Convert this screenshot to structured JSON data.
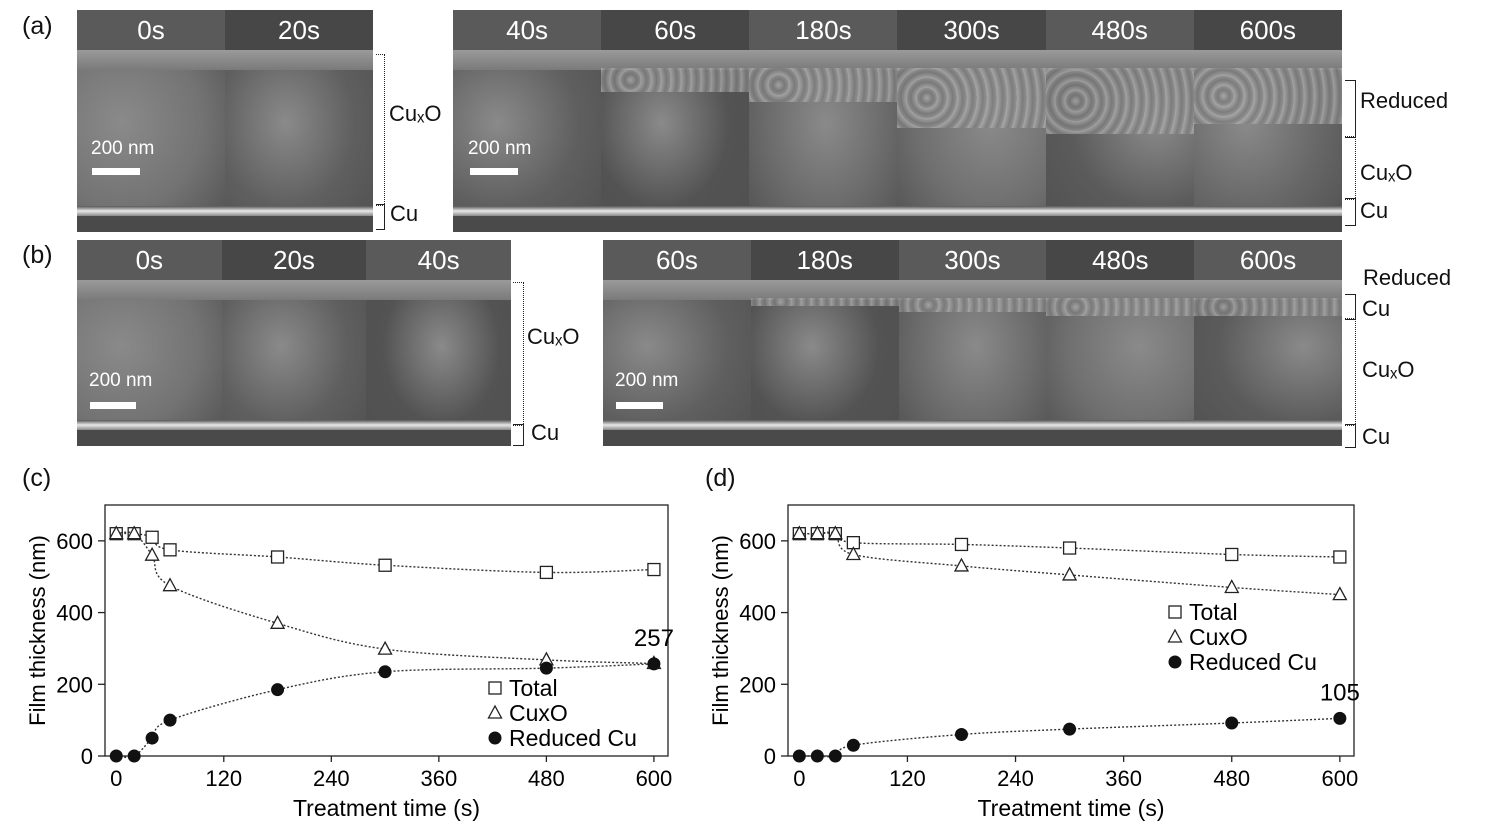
{
  "figure": {
    "panel_labels": {
      "a": "(a)",
      "b": "(b)",
      "c": "(c)",
      "d": "(d)"
    },
    "panel_a": {
      "left_times": [
        "0s",
        "20s"
      ],
      "right_times": [
        "40s",
        "60s",
        "180s",
        "300s",
        "480s",
        "600s"
      ],
      "scale_label": "200 nm",
      "left_layers": {
        "oxide": "CuₓO",
        "metal": "Cu"
      },
      "right_layers": {
        "reduced": "Reduced",
        "oxide": "CuₓO",
        "metal": "Cu"
      }
    },
    "panel_b": {
      "left_times": [
        "0s",
        "20s",
        "40s"
      ],
      "right_times": [
        "60s",
        "180s",
        "300s",
        "480s",
        "600s"
      ],
      "scale_label": "200 nm",
      "left_layers": {
        "oxide": "CuₓO",
        "metal": "Cu"
      },
      "right_layers": {
        "reduced": "Reduced",
        "reduced_cu": "Cu",
        "oxide": "CuₓO",
        "metal": "Cu"
      }
    }
  },
  "chart_data": [
    {
      "type": "scatter",
      "panel": "(c)",
      "xlabel": "Treatment time (s)",
      "ylabel": "Film thickness (nm)",
      "xlim": [
        0,
        600
      ],
      "ylim": [
        0,
        700
      ],
      "xticks": [
        0,
        120,
        240,
        360,
        480,
        600
      ],
      "yticks": [
        0,
        200,
        400,
        600
      ],
      "legend_position": "bottom-right",
      "annotation": "257",
      "series": [
        {
          "name": "Total",
          "marker": "square",
          "x": [
            0,
            20,
            40,
            60,
            180,
            300,
            480,
            600
          ],
          "y": [
            620,
            620,
            610,
            575,
            555,
            532,
            512,
            520
          ]
        },
        {
          "name": "CuxO",
          "marker": "triangle",
          "x": [
            0,
            20,
            40,
            60,
            180,
            300,
            480,
            600
          ],
          "y": [
            620,
            620,
            560,
            475,
            370,
            298,
            268,
            258
          ]
        },
        {
          "name": "Reduced Cu",
          "marker": "circle",
          "x": [
            0,
            20,
            40,
            60,
            180,
            300,
            480,
            600
          ],
          "y": [
            0,
            0,
            50,
            100,
            185,
            235,
            245,
            257
          ]
        }
      ]
    },
    {
      "type": "scatter",
      "panel": "(d)",
      "xlabel": "Treatment time (s)",
      "ylabel": "Film thickness (nm)",
      "xlim": [
        0,
        600
      ],
      "ylim": [
        0,
        700
      ],
      "xticks": [
        0,
        120,
        240,
        360,
        480,
        600
      ],
      "yticks": [
        0,
        200,
        400,
        600
      ],
      "legend_position": "center-right",
      "annotation": "105",
      "series": [
        {
          "name": "Total",
          "marker": "square",
          "x": [
            0,
            20,
            40,
            60,
            180,
            300,
            480,
            600
          ],
          "y": [
            620,
            620,
            620,
            595,
            590,
            580,
            562,
            555
          ]
        },
        {
          "name": "CuxO",
          "marker": "triangle",
          "x": [
            0,
            20,
            40,
            60,
            180,
            300,
            480,
            600
          ],
          "y": [
            620,
            620,
            620,
            562,
            530,
            505,
            470,
            450
          ]
        },
        {
          "name": "Reduced Cu",
          "marker": "circle",
          "x": [
            0,
            20,
            40,
            60,
            180,
            300,
            480,
            600
          ],
          "y": [
            0,
            0,
            0,
            30,
            60,
            75,
            92,
            105
          ]
        }
      ]
    }
  ]
}
